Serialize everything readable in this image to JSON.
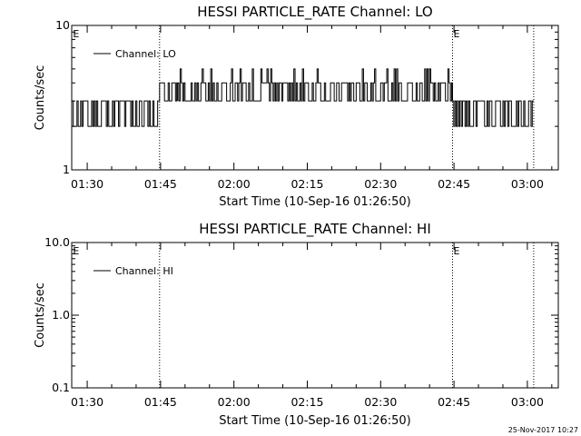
{
  "footer": {
    "timestamp": "25-Nov-2017 10:27"
  },
  "chart_data": [
    {
      "type": "line",
      "title": "HESSI PARTICLE_RATE Channel: LO",
      "xlabel": "Start Time (10-Sep-16 01:26:50)",
      "ylabel": "Counts/sec",
      "yscale": "log",
      "ylim": [
        1,
        10
      ],
      "y_ticks": [
        {
          "value": 1,
          "label": "1"
        },
        {
          "value": 10,
          "label": "10"
        }
      ],
      "xlim_minutes": [
        86.83,
        186.33
      ],
      "x_ticks": [
        {
          "minute": 90,
          "label": "01:30"
        },
        {
          "minute": 105,
          "label": "01:45"
        },
        {
          "minute": 120,
          "label": "02:00"
        },
        {
          "minute": 135,
          "label": "02:15"
        },
        {
          "minute": 150,
          "label": "02:30"
        },
        {
          "minute": 165,
          "label": "02:45"
        },
        {
          "minute": 180,
          "label": "03:00"
        }
      ],
      "vlines_minutes": [
        104.8,
        164.7,
        181.3
      ],
      "markers": [
        {
          "minute": 86.9,
          "label": "E"
        },
        {
          "minute": 164.7,
          "label": "E"
        }
      ],
      "legend": {
        "label": "Channel: LO",
        "position": "top-left"
      },
      "series": [
        {
          "name": "Channel: LO",
          "segments": [
            {
              "start": 86.9,
              "end": 104.8,
              "step": 0.25,
              "base": 2,
              "alt": 3,
              "seed": 11
            },
            {
              "start": 104.8,
              "end": 108.5,
              "step": 0.25,
              "base": 3,
              "alt": 4,
              "seed": 5
            },
            {
              "start": 108.5,
              "end": 164.7,
              "step": 0.25,
              "base": 3,
              "alt": 4,
              "high": 5,
              "seed": 7
            },
            {
              "start": 164.7,
              "end": 166.5,
              "step": 0.25,
              "base": 3,
              "alt": 2,
              "seed": 3
            },
            {
              "start": 166.5,
              "end": 181.3,
              "step": 0.25,
              "base": 2,
              "alt": 3,
              "seed": 9
            }
          ]
        }
      ]
    },
    {
      "type": "line",
      "title": "HESSI PARTICLE_RATE Channel: HI",
      "xlabel": "Start Time (10-Sep-16 01:26:50)",
      "ylabel": "Counts/sec",
      "yscale": "log",
      "ylim": [
        0.1,
        10
      ],
      "y_ticks": [
        {
          "value": 0.1,
          "label": "0.1"
        },
        {
          "value": 1,
          "label": "1.0"
        },
        {
          "value": 10,
          "label": "10.0"
        }
      ],
      "xlim_minutes": [
        86.83,
        186.33
      ],
      "x_ticks": [
        {
          "minute": 90,
          "label": "01:30"
        },
        {
          "minute": 105,
          "label": "01:45"
        },
        {
          "minute": 120,
          "label": "02:00"
        },
        {
          "minute": 135,
          "label": "02:15"
        },
        {
          "minute": 150,
          "label": "02:30"
        },
        {
          "minute": 165,
          "label": "02:45"
        },
        {
          "minute": 180,
          "label": "03:00"
        }
      ],
      "vlines_minutes": [
        104.8,
        164.7,
        181.3
      ],
      "markers": [
        {
          "minute": 86.9,
          "label": "E"
        },
        {
          "minute": 164.7,
          "label": "E"
        }
      ],
      "legend": {
        "label": "Channel: HI",
        "position": "top-left"
      },
      "series": [
        {
          "name": "Channel: HI",
          "segments": []
        }
      ]
    }
  ]
}
